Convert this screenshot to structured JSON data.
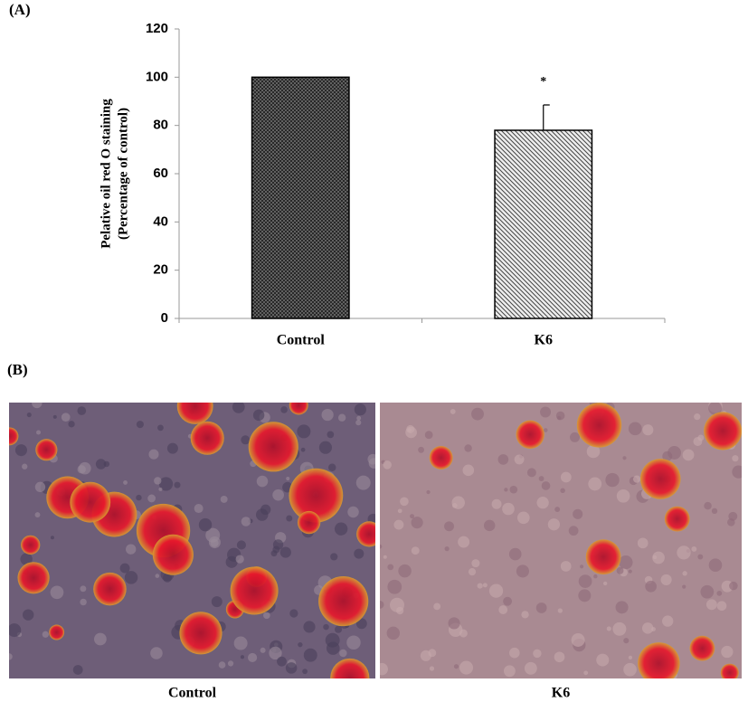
{
  "panel_a": "(A)",
  "panel_b": "(B)",
  "chart_data": {
    "type": "bar",
    "ylabel": [
      "Pelative oil red O staining",
      "(Percentage of control)"
    ],
    "categories": [
      "Control",
      "K6"
    ],
    "values": [
      100,
      78
    ],
    "errors": [
      null,
      10.5
    ],
    "annotations": [
      null,
      "*"
    ],
    "ylim": [
      0,
      120
    ],
    "yticks": [
      0,
      20,
      40,
      60,
      80,
      100,
      120
    ]
  },
  "images": [
    {
      "caption": "Control"
    },
    {
      "caption": "K6"
    }
  ]
}
